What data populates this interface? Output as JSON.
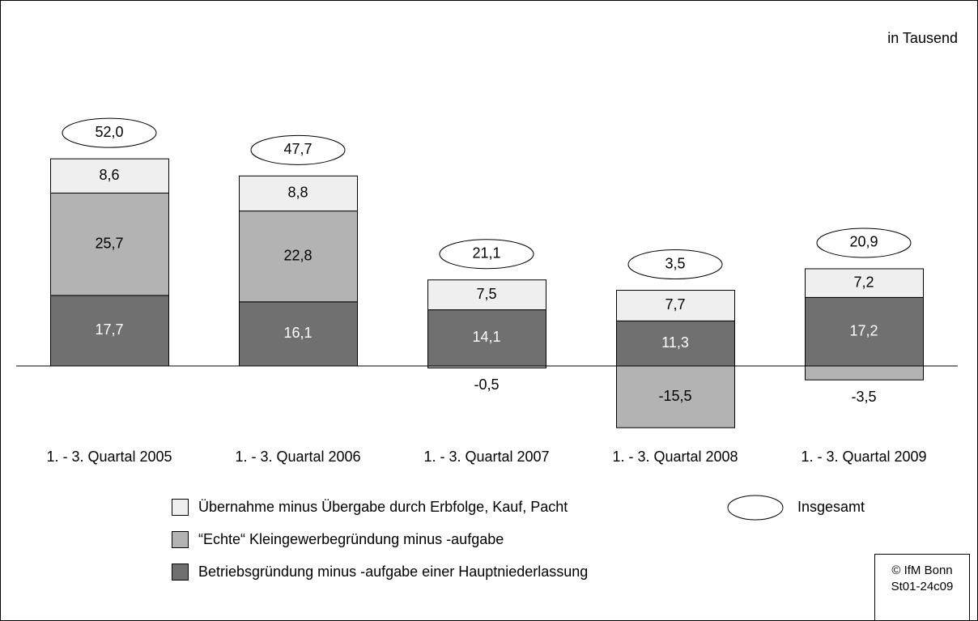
{
  "chart_data": {
    "type": "stacked-bar",
    "note": "in Tausend",
    "credit": [
      "© IfM Bonn",
      "St01-24c09"
    ],
    "categories": [
      "1. - 3. Quartal 2005",
      "1. - 3. Quartal 2006",
      "1. - 3. Quartal 2007",
      "1. - 3. Quartal 2008",
      "1. - 3. Quartal 2009"
    ],
    "series": [
      {
        "name": "Übernahme minus Übergabe durch Erbfolge, Kauf, Pacht",
        "color": "#efefef",
        "text_color": "#000000",
        "values": [
          8.6,
          8.8,
          7.5,
          7.7,
          7.2
        ],
        "value_labels": [
          "8,6",
          "8,8",
          "7,5",
          "7,7",
          "7,2"
        ]
      },
      {
        "name": "“Echte“ Kleingewerbegründung minus -aufgabe",
        "color": "#b3b3b3",
        "text_color": "#000000",
        "values": [
          25.7,
          22.8,
          -0.5,
          -15.5,
          -3.5
        ],
        "value_labels": [
          "25,7",
          "22,8",
          "-0,5",
          "-15,5",
          "-3,5"
        ]
      },
      {
        "name": "Betriebsgründung minus -aufgabe einer Hauptniederlassung",
        "color": "#707070",
        "text_color": "#ffffff",
        "values": [
          17.7,
          16.1,
          14.1,
          11.3,
          17.2
        ],
        "value_labels": [
          "17,7",
          "16,1",
          "14,1",
          "11,3",
          "17,2"
        ]
      }
    ],
    "totals": {
      "name": "Insgesamt",
      "values": [
        52.0,
        47.7,
        21.1,
        3.5,
        20.9
      ],
      "value_labels": [
        "52,0",
        "47,7",
        "21,1",
        "3,5",
        "20,9"
      ]
    }
  }
}
